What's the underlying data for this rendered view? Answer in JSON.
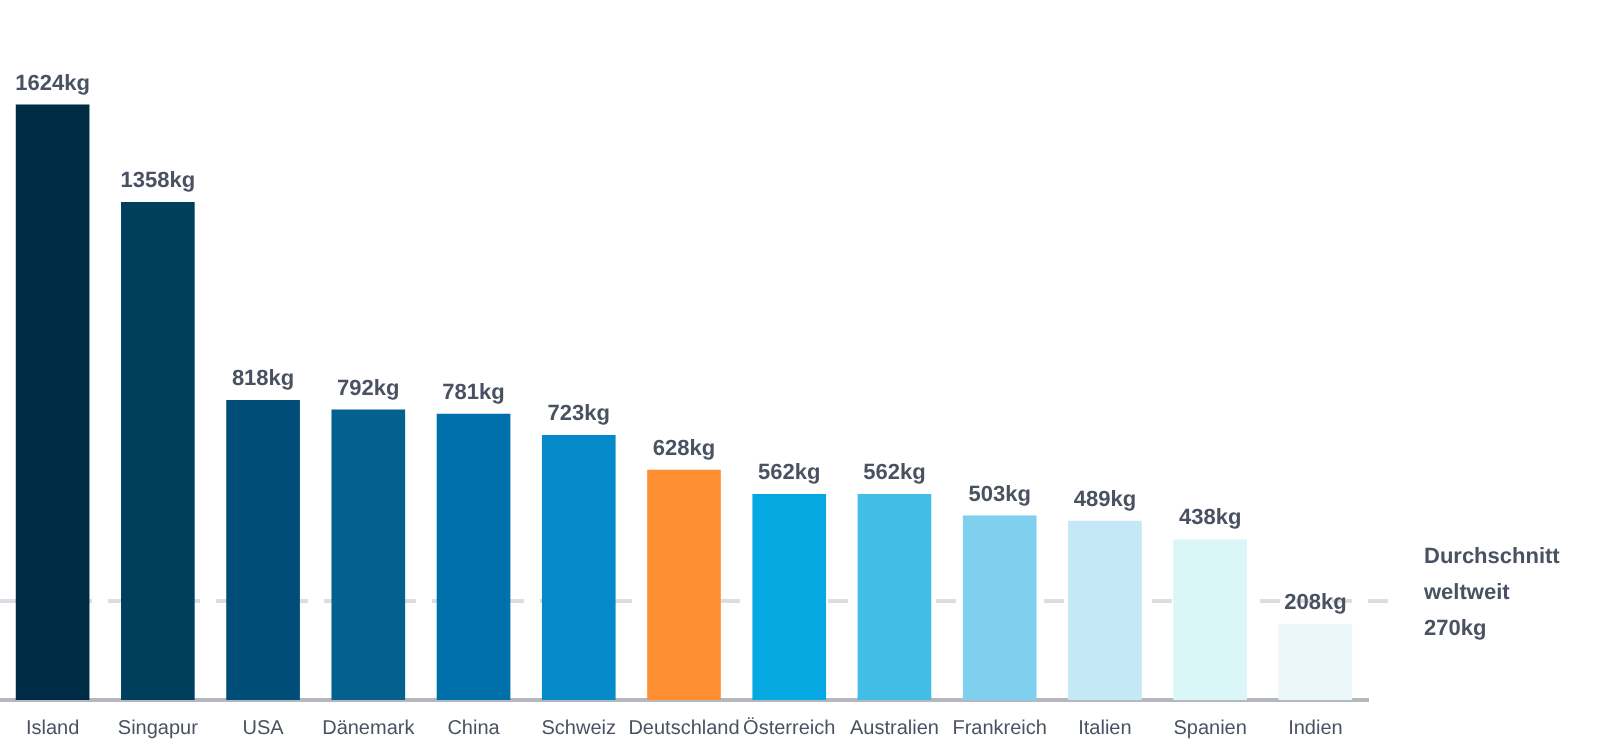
{
  "chart_data": {
    "type": "bar",
    "categories": [
      "Island",
      "Singapur",
      "USA",
      "Dänemark",
      "China",
      "Schweiz",
      "Deutschland",
      "Österreich",
      "Australien",
      "Frankreich",
      "Italien",
      "Spanien",
      "Indien"
    ],
    "values": [
      1624,
      1358,
      818,
      792,
      781,
      723,
      628,
      562,
      562,
      503,
      489,
      438,
      208
    ],
    "value_labels": [
      "1624kg",
      "1358kg",
      "818kg",
      "792kg",
      "781kg",
      "723kg",
      "628kg",
      "562kg",
      "562kg",
      "503kg",
      "489kg",
      "438kg",
      "208kg"
    ],
    "colors": [
      "#002b44",
      "#003f5c",
      "#004d78",
      "#03608f",
      "#0070ab",
      "#048ac8",
      "#fe8e32",
      "#05a8e0",
      "#41bde6",
      "#7fd0ee",
      "#c4e8f5",
      "#daf6f6",
      "#ecf7fb"
    ],
    "ref_lines": [
      {
        "axis": "y",
        "value": 270,
        "label": "Durchschnitt weltweit 270kg",
        "color": "#dcdde0",
        "line_style": "dashed"
      }
    ],
    "grid": false,
    "legend": false
  }
}
